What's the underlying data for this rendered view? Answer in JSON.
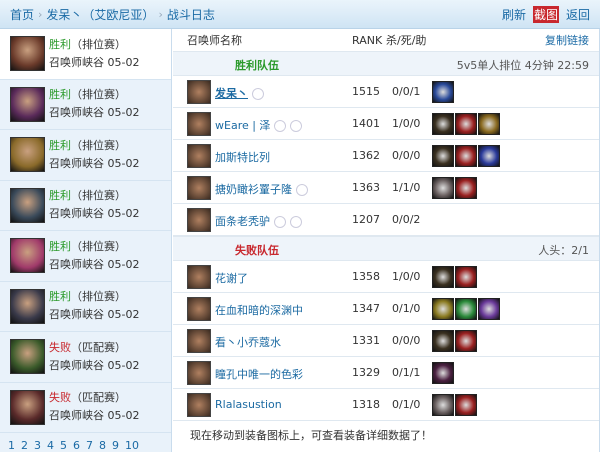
{
  "breadcrumb": [
    "首页",
    "发呆丶（艾欧尼亚）",
    "战斗日志"
  ],
  "top_actions": [
    "刷新",
    "截图",
    "返回"
  ],
  "sidebar": {
    "items": [
      {
        "result": "胜利",
        "mode": "（排位赛）",
        "map": "召唤师峡谷 05-02",
        "win": true,
        "color": "#6a3a2a"
      },
      {
        "result": "胜利",
        "mode": "（排位赛）",
        "map": "召唤师峡谷 05-02",
        "win": true,
        "color": "#5a2a5a"
      },
      {
        "result": "胜利",
        "mode": "（排位赛）",
        "map": "召唤师峡谷 05-02",
        "win": true,
        "color": "#8a6a2a"
      },
      {
        "result": "胜利",
        "mode": "（排位赛）",
        "map": "召唤师峡谷 05-02",
        "win": true,
        "color": "#3a4a5a"
      },
      {
        "result": "胜利",
        "mode": "（排位赛）",
        "map": "召唤师峡谷 05-02",
        "win": true,
        "color": "#a03a6a"
      },
      {
        "result": "胜利",
        "mode": "（排位赛）",
        "map": "召唤师峡谷 05-02",
        "win": true,
        "color": "#3a3a4a"
      },
      {
        "result": "失败",
        "mode": "（匹配赛）",
        "map": "召唤师峡谷 05-02",
        "win": false,
        "color": "#3a5a2a"
      },
      {
        "result": "失败",
        "mode": "（匹配赛）",
        "map": "召唤师峡谷 05-02",
        "win": false,
        "color": "#5a2a2a"
      }
    ],
    "pages": [
      "1",
      "2",
      "3",
      "4",
      "5",
      "6",
      "7",
      "8",
      "9",
      "10"
    ]
  },
  "table": {
    "col_name": "召唤师名称",
    "col_rank": "RANK",
    "col_kda": "杀/死/助",
    "copy_link": "复制链接"
  },
  "winners": {
    "title": "胜利队伍",
    "info": "5v5单人排位 4分钟 22:59",
    "rows": [
      {
        "name": "发呆丶",
        "rank": "1515",
        "kda": "0/0/1",
        "me": true,
        "badges": 1,
        "items": [
          "#2a4a9a"
        ]
      },
      {
        "name": "wEare | 泽",
        "rank": "1401",
        "kda": "1/0/0",
        "badges": 2,
        "items": [
          "#3a3020",
          "#9a2020",
          "#8a6a20"
        ]
      },
      {
        "name": "加斯特比列",
        "rank": "1362",
        "kda": "0/0/0",
        "badges": 0,
        "items": [
          "#3a3020",
          "#9a2020",
          "#2a3a9a"
        ]
      },
      {
        "name": "搪奶瞰衫罿子隆",
        "rank": "1363",
        "kda": "1/1/0",
        "badges": 1,
        "items": [
          "#6a6060",
          "#9a2020"
        ]
      },
      {
        "name": "面条老秃驴",
        "rank": "1207",
        "kda": "0/0/2",
        "badges": 2,
        "items": []
      }
    ]
  },
  "losers": {
    "title": "失败队伍",
    "info": "人头：2/1",
    "rows": [
      {
        "name": "花谢了",
        "rank": "1358",
        "kda": "1/0/0",
        "badges": 0,
        "items": [
          "#3a3020",
          "#9a2020"
        ]
      },
      {
        "name": "在血和暗的深渊中",
        "rank": "1347",
        "kda": "0/1/0",
        "badges": 0,
        "items": [
          "#8a7a20",
          "#2a8a3a",
          "#6a3a9a"
        ]
      },
      {
        "name": "看丶小乔蔻水",
        "rank": "1331",
        "kda": "0/0/0",
        "badges": 0,
        "items": [
          "#3a3020",
          "#9a2020"
        ]
      },
      {
        "name": "瞳孔中唯一的色彩",
        "rank": "1329",
        "kda": "0/1/1",
        "badges": 0,
        "items": [
          "#4a2040"
        ]
      },
      {
        "name": "Rlalasustion",
        "rank": "1318",
        "kda": "0/1/0",
        "badges": 0,
        "items": [
          "#6a6060",
          "#9a2020"
        ]
      }
    ]
  },
  "footer": "现在移动到装备图标上，可查看装备详细数据了！"
}
